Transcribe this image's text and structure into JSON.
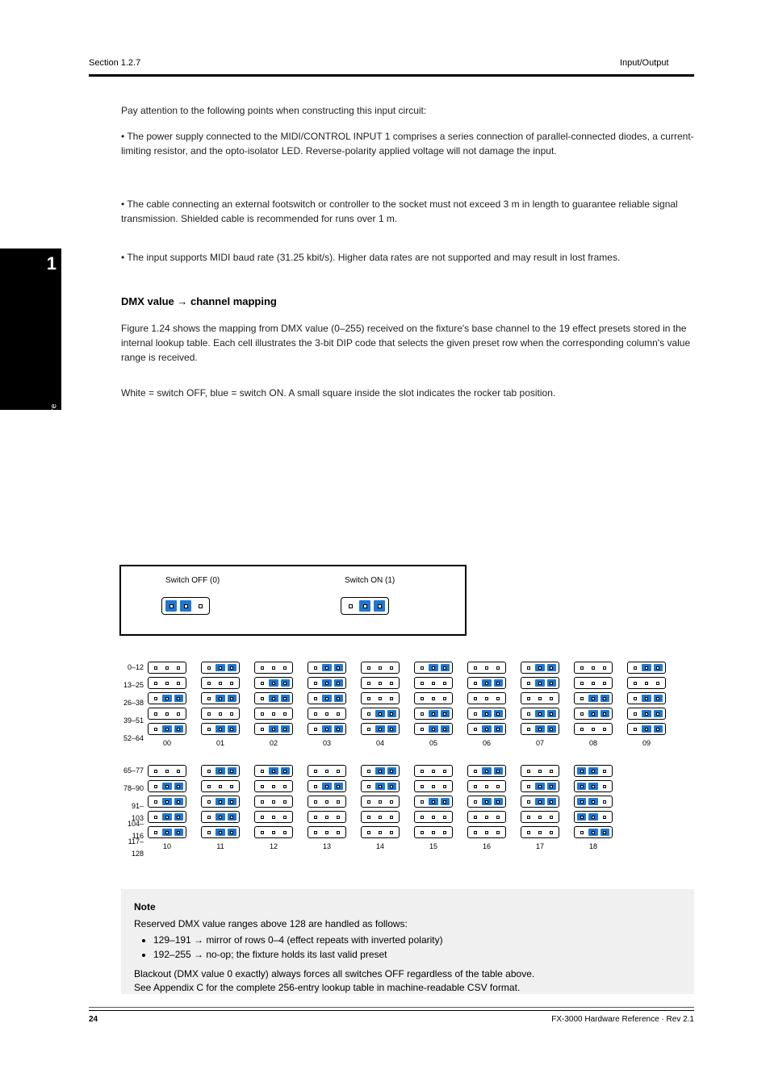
{
  "colors": {
    "on_fill": "#1f77d0",
    "border": "#000000",
    "background": "#ffffff",
    "note_bg": "#f0f0f0"
  },
  "header": {
    "section": "Section 1.2.7",
    "chapter": "Input/Output"
  },
  "sidebar": {
    "number": "1",
    "label": "Hardware"
  },
  "body": {
    "p1": "Pay attention to the following points when constructing this input circuit:",
    "p2": "• The power supply connected to the MIDI/CONTROL INPUT 1 comprises a series connection of parallel-connected diodes, a current-limiting resistor, and the opto-isolator LED. Reverse-polarity applied voltage will not damage the input.",
    "p3": "• The cable connecting an external footswitch or controller to the socket must not exceed 3 m in length to guarantee reliable signal transmission. Shielded cable is recommended for runs over 1 m.",
    "p4": "• The input supports MIDI baud rate (31.25 kbit/s). Higher data rates are not supported and may result in lost frames.",
    "h_dmx": "DMX value → channel mapping",
    "p5": "Figure 1.24 shows the mapping from DMX value (0–255) received on the fixture's base channel to the 19 effect presets stored in the internal lookup table. Each cell illustrates the 3-bit DIP code that selects the given preset row when the corresponding column's value range is received.",
    "p6": "White = switch OFF, blue = switch ON. A small square inside the slot indicates the rocker tab position."
  },
  "legend": {
    "off_label": "Switch OFF (0)",
    "on_label": "Switch ON (1)",
    "off_pattern": [
      1,
      1,
      0
    ],
    "on_pattern": [
      0,
      1,
      1
    ]
  },
  "grid_top": {
    "row_labels": [
      "0–12",
      "13–25",
      "26–38",
      "39–51",
      "52–64"
    ],
    "col_labels": [
      "00",
      "01",
      "02",
      "03",
      "04",
      "05",
      "06",
      "07",
      "08",
      "09"
    ],
    "cells": [
      [
        [
          0,
          0,
          0
        ],
        [
          0,
          1,
          1
        ],
        [
          0,
          0,
          0
        ],
        [
          0,
          1,
          1
        ],
        [
          0,
          0,
          0
        ],
        [
          0,
          1,
          1
        ],
        [
          0,
          0,
          0
        ],
        [
          0,
          1,
          1
        ],
        [
          0,
          0,
          0
        ],
        [
          0,
          1,
          1
        ]
      ],
      [
        [
          0,
          0,
          0
        ],
        [
          0,
          0,
          0
        ],
        [
          0,
          1,
          1
        ],
        [
          0,
          1,
          1
        ],
        [
          0,
          0,
          0
        ],
        [
          0,
          0,
          0
        ],
        [
          0,
          1,
          1
        ],
        [
          0,
          1,
          1
        ],
        [
          0,
          0,
          0
        ],
        [
          0,
          0,
          0
        ]
      ],
      [
        [
          0,
          1,
          1
        ],
        [
          0,
          1,
          1
        ],
        [
          0,
          1,
          1
        ],
        [
          0,
          1,
          1
        ],
        [
          0,
          0,
          0
        ],
        [
          0,
          0,
          0
        ],
        [
          0,
          0,
          0
        ],
        [
          0,
          0,
          0
        ],
        [
          0,
          1,
          1
        ],
        [
          0,
          1,
          1
        ]
      ],
      [
        [
          0,
          0,
          0
        ],
        [
          0,
          0,
          0
        ],
        [
          0,
          0,
          0
        ],
        [
          0,
          0,
          0
        ],
        [
          0,
          1,
          1
        ],
        [
          0,
          1,
          1
        ],
        [
          0,
          1,
          1
        ],
        [
          0,
          1,
          1
        ],
        [
          0,
          1,
          1
        ],
        [
          0,
          1,
          1
        ]
      ],
      [
        [
          0,
          1,
          1
        ],
        [
          0,
          1,
          1
        ],
        [
          0,
          1,
          1
        ],
        [
          0,
          1,
          1
        ],
        [
          0,
          1,
          1
        ],
        [
          0,
          1,
          1
        ],
        [
          0,
          1,
          1
        ],
        [
          0,
          1,
          1
        ],
        [
          0,
          0,
          0
        ],
        [
          0,
          1,
          1
        ]
      ]
    ]
  },
  "grid_bottom": {
    "row_labels": [
      "65–77",
      "78–90",
      "91–103",
      "104–116",
      "117–128"
    ],
    "col_labels": [
      "10",
      "11",
      "12",
      "13",
      "14",
      "15",
      "16",
      "17",
      "18"
    ],
    "cells": [
      [
        [
          0,
          0,
          0
        ],
        [
          0,
          1,
          1
        ],
        [
          0,
          1,
          1
        ],
        [
          0,
          0,
          0
        ],
        [
          0,
          1,
          1
        ],
        [
          0,
          0,
          0
        ],
        [
          0,
          1,
          1
        ],
        [
          0,
          0,
          0
        ],
        [
          1,
          1,
          0
        ]
      ],
      [
        [
          0,
          1,
          1
        ],
        [
          0,
          0,
          0
        ],
        [
          0,
          0,
          0
        ],
        [
          0,
          1,
          1
        ],
        [
          0,
          1,
          1
        ],
        [
          0,
          0,
          0
        ],
        [
          0,
          0,
          0
        ],
        [
          0,
          1,
          1
        ],
        [
          1,
          1,
          0
        ]
      ],
      [
        [
          0,
          1,
          1
        ],
        [
          0,
          1,
          1
        ],
        [
          0,
          0,
          0
        ],
        [
          0,
          0,
          0
        ],
        [
          0,
          0,
          0
        ],
        [
          0,
          1,
          1
        ],
        [
          0,
          1,
          1
        ],
        [
          0,
          1,
          1
        ],
        [
          1,
          1,
          0
        ]
      ],
      [
        [
          0,
          1,
          1
        ],
        [
          0,
          1,
          1
        ],
        [
          0,
          0,
          0
        ],
        [
          0,
          0,
          0
        ],
        [
          0,
          0,
          0
        ],
        [
          0,
          0,
          0
        ],
        [
          0,
          0,
          0
        ],
        [
          0,
          0,
          0
        ],
        [
          1,
          1,
          0
        ]
      ],
      [
        [
          0,
          1,
          1
        ],
        [
          0,
          1,
          1
        ],
        [
          0,
          0,
          0
        ],
        [
          0,
          0,
          0
        ],
        [
          0,
          0,
          0
        ],
        [
          0,
          0,
          0
        ],
        [
          0,
          0,
          0
        ],
        [
          0,
          0,
          0
        ],
        [
          0,
          1,
          1
        ]
      ]
    ]
  },
  "note": {
    "heading": "Note",
    "line1": "Reserved DMX value ranges above 128 are handled as follows:",
    "bullet1": "129–191 → mirror of rows 0–4 (effect repeats with inverted polarity)",
    "bullet2": "192–255 → no-op; the fixture holds its last valid preset",
    "line2": "Blackout (DMX value 0 exactly) always forces all switches OFF regardless of the table above.",
    "line3": "See Appendix C for the complete 256-entry lookup table in machine-readable CSV format."
  },
  "footer": {
    "page": "24",
    "doc": "FX-3000 Hardware Reference · Rev 2.1"
  }
}
